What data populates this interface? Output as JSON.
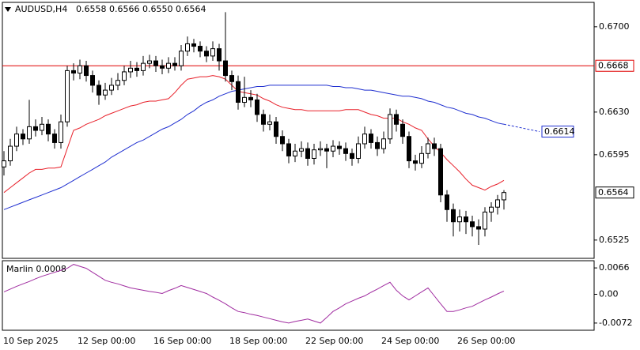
{
  "chart_data": [
    {
      "type": "candlestick",
      "symbol": "AUDUSD,H4",
      "ohlc_header": "0.6558 0.6566 0.6550 0.6564",
      "categories": [
        "10 Sep 2025",
        null,
        null,
        null,
        null,
        null,
        null,
        null,
        null,
        null,
        null,
        null,
        "12 Sep 00:00",
        null,
        null,
        null,
        null,
        null,
        null,
        null,
        null,
        null,
        null,
        null,
        "16 Sep 00:00",
        null,
        null,
        null,
        null,
        null,
        null,
        null,
        null,
        null,
        null,
        null,
        "18 Sep 00:00",
        null,
        null,
        null,
        null,
        null,
        null,
        null,
        null,
        null,
        null,
        null,
        "22 Sep 00:00",
        null,
        null,
        null,
        null,
        null,
        null,
        null,
        null,
        null,
        null,
        null,
        "24 Sep 00:00",
        null,
        null,
        null,
        null,
        null,
        null,
        null,
        null,
        null,
        null,
        null,
        "26 Sep 00:00",
        null,
        null,
        null,
        null,
        null,
        null,
        null
      ],
      "open": [
        0.6585,
        0.659,
        0.6602,
        0.6612,
        0.6608,
        0.6618,
        0.6615,
        0.662,
        0.6612,
        0.6605,
        0.6622,
        0.6664,
        0.6662,
        0.6668,
        0.666,
        0.6652,
        0.6644,
        0.6648,
        0.6652,
        0.6656,
        0.6663,
        0.6666,
        0.6664,
        0.667,
        0.6672,
        0.6668,
        0.6666,
        0.667,
        0.6668,
        0.668,
        0.6686,
        0.6684,
        0.668,
        0.6676,
        0.6682,
        0.6672,
        0.666,
        0.6655,
        0.6638,
        0.6642,
        0.664,
        0.6628,
        0.662,
        0.6622,
        0.661,
        0.6604,
        0.6594,
        0.6598,
        0.66,
        0.6592,
        0.6599,
        0.66,
        0.6598,
        0.6602,
        0.66,
        0.6596,
        0.6592,
        0.6604,
        0.6612,
        0.6605,
        0.66,
        0.6608,
        0.6628,
        0.662,
        0.661,
        0.659,
        0.6588,
        0.6596,
        0.6604,
        0.66,
        0.6562,
        0.655,
        0.654,
        0.6544,
        0.654,
        0.6536,
        0.6534,
        0.6548,
        0.6552,
        0.6558
      ],
      "high": [
        0.6598,
        0.6608,
        0.6618,
        0.6616,
        0.664,
        0.6624,
        0.6626,
        0.6624,
        0.6616,
        0.6628,
        0.6668,
        0.667,
        0.6673,
        0.6672,
        0.6664,
        0.6656,
        0.6654,
        0.6658,
        0.6662,
        0.6668,
        0.6672,
        0.6671,
        0.6676,
        0.6677,
        0.6676,
        0.6673,
        0.6675,
        0.6675,
        0.6685,
        0.6692,
        0.669,
        0.6688,
        0.6684,
        0.6688,
        0.6686,
        0.6712,
        0.6664,
        0.666,
        0.6659,
        0.6648,
        0.6645,
        0.6632,
        0.6628,
        0.6626,
        0.6615,
        0.6608,
        0.6604,
        0.6606,
        0.6605,
        0.6604,
        0.6606,
        0.6604,
        0.6607,
        0.6606,
        0.6605,
        0.66,
        0.661,
        0.6618,
        0.6616,
        0.661,
        0.6614,
        0.6633,
        0.6632,
        0.6624,
        0.6614,
        0.6595,
        0.6602,
        0.6609,
        0.6609,
        0.6604,
        0.6566,
        0.6555,
        0.655,
        0.6549,
        0.6545,
        0.6542,
        0.6552,
        0.6556,
        0.6562,
        0.6566
      ],
      "low": [
        0.6578,
        0.6586,
        0.6598,
        0.6603,
        0.6604,
        0.661,
        0.6611,
        0.6606,
        0.66,
        0.66,
        0.6618,
        0.6656,
        0.6657,
        0.6655,
        0.6646,
        0.6636,
        0.664,
        0.6644,
        0.6648,
        0.6652,
        0.6658,
        0.6659,
        0.666,
        0.6666,
        0.6663,
        0.6661,
        0.6662,
        0.6664,
        0.6664,
        0.6676,
        0.6679,
        0.6675,
        0.6671,
        0.6672,
        0.6664,
        0.6655,
        0.6648,
        0.6632,
        0.6634,
        0.6634,
        0.6622,
        0.6614,
        0.6615,
        0.6604,
        0.6598,
        0.6588,
        0.6589,
        0.6593,
        0.6586,
        0.6587,
        0.6594,
        0.6584,
        0.6593,
        0.6595,
        0.659,
        0.6586,
        0.6588,
        0.66,
        0.66,
        0.6594,
        0.6596,
        0.6604,
        0.6614,
        0.6604,
        0.6584,
        0.6582,
        0.6584,
        0.6592,
        0.6594,
        0.6556,
        0.654,
        0.6528,
        0.6532,
        0.653,
        0.6528,
        0.6521,
        0.6528,
        0.654,
        0.6546,
        0.655
      ],
      "close": [
        0.659,
        0.6602,
        0.6612,
        0.6608,
        0.6618,
        0.6615,
        0.662,
        0.6612,
        0.6605,
        0.6622,
        0.6664,
        0.6662,
        0.6668,
        0.666,
        0.6652,
        0.6644,
        0.6648,
        0.6652,
        0.6656,
        0.6663,
        0.6666,
        0.6664,
        0.667,
        0.6672,
        0.6668,
        0.6666,
        0.667,
        0.6668,
        0.668,
        0.6686,
        0.6684,
        0.668,
        0.6676,
        0.6682,
        0.6672,
        0.666,
        0.6655,
        0.6638,
        0.6642,
        0.664,
        0.6628,
        0.662,
        0.6622,
        0.661,
        0.6604,
        0.6594,
        0.6598,
        0.66,
        0.6592,
        0.6599,
        0.66,
        0.6598,
        0.6602,
        0.66,
        0.6596,
        0.6592,
        0.6604,
        0.6612,
        0.6605,
        0.66,
        0.6608,
        0.6628,
        0.662,
        0.661,
        0.659,
        0.6588,
        0.6596,
        0.6604,
        0.66,
        0.6562,
        0.655,
        0.654,
        0.6544,
        0.654,
        0.6536,
        0.6534,
        0.6548,
        0.6552,
        0.6558,
        0.6564
      ],
      "up_color": "#ffffff",
      "down_color": "#000000",
      "wick_color": "#000000",
      "lines": [
        {
          "color": "#e8202a",
          "values": [
            0.6564,
            0.6568,
            0.6572,
            0.6576,
            0.658,
            0.6583,
            0.6583,
            0.6584,
            0.6584,
            0.6585,
            0.66,
            0.6615,
            0.6617,
            0.662,
            0.6622,
            0.6624,
            0.6627,
            0.6629,
            0.6631,
            0.6633,
            0.6635,
            0.6636,
            0.6638,
            0.6639,
            0.6639,
            0.664,
            0.6641,
            0.6646,
            0.6652,
            0.6657,
            0.6658,
            0.6659,
            0.6659,
            0.666,
            0.6659,
            0.6657,
            0.6652,
            0.6647,
            0.6646,
            0.6645,
            0.6644,
            0.6641,
            0.6639,
            0.6636,
            0.6634,
            0.6633,
            0.6632,
            0.6632,
            0.6631,
            0.6631,
            0.6631,
            0.6631,
            0.6631,
            0.6631,
            0.6632,
            0.6632,
            0.6632,
            0.663,
            0.6628,
            0.6627,
            0.6625,
            0.6625,
            0.6625,
            0.6622,
            0.662,
            0.6617,
            0.6615,
            0.6608,
            0.6602,
            0.6597,
            0.6591,
            0.6586,
            0.6581,
            0.6575,
            0.657,
            0.6568,
            0.6566,
            0.6569,
            0.6571,
            0.6574
          ]
        },
        {
          "color": "#1f2fd0",
          "values": [
            0.655,
            0.6552,
            0.6554,
            0.6556,
            0.6558,
            0.656,
            0.6562,
            0.6564,
            0.6566,
            0.6568,
            0.6571,
            0.6574,
            0.6577,
            0.658,
            0.6583,
            0.6586,
            0.6589,
            0.6593,
            0.6596,
            0.6599,
            0.6602,
            0.6605,
            0.6607,
            0.661,
            0.6613,
            0.6616,
            0.6618,
            0.6621,
            0.6624,
            0.6628,
            0.6631,
            0.6635,
            0.6638,
            0.664,
            0.6643,
            0.6645,
            0.6647,
            0.6648,
            0.6649,
            0.665,
            0.6651,
            0.6651,
            0.6652,
            0.6652,
            0.6652,
            0.6652,
            0.6652,
            0.6652,
            0.6652,
            0.6652,
            0.6652,
            0.6652,
            0.6651,
            0.6651,
            0.665,
            0.665,
            0.6649,
            0.6648,
            0.6648,
            0.6647,
            0.6646,
            0.6645,
            0.6644,
            0.6643,
            0.6643,
            0.6642,
            0.6641,
            0.6639,
            0.6638,
            0.6636,
            0.6634,
            0.6633,
            0.6631,
            0.6629,
            0.6628,
            0.6626,
            0.6625,
            0.6623,
            0.6621,
            0.662
          ],
          "forecast": 0.6614
        }
      ],
      "hline": {
        "value": 0.6668,
        "color": "#e00000"
      },
      "last_price": 0.6564,
      "ylim": [
        0.651,
        0.672
      ],
      "yticks": [
        {
          "value": 0.67,
          "label": "0.6700"
        },
        {
          "value": 0.663,
          "label": "0.6630"
        },
        0.6595,
        0.6525
      ]
    },
    {
      "type": "line",
      "title": "Marlin 0.0008",
      "color": "#a02ca0",
      "values": [
        0.0006,
        0.0013,
        0.002,
        0.0026,
        0.0032,
        0.0039,
        0.0045,
        0.005,
        0.0055,
        0.006,
        0.0065,
        0.0075,
        0.007,
        0.0065,
        0.0055,
        0.0045,
        0.0035,
        0.003,
        0.0026,
        0.0021,
        0.0016,
        0.0013,
        0.001,
        0.0007,
        0.0005,
        0.0002,
        0.0009,
        0.0015,
        0.0022,
        0.0017,
        0.0012,
        0.0007,
        0.0002,
        -0.0007,
        -0.0015,
        -0.0024,
        -0.0034,
        -0.0043,
        -0.0046,
        -0.005,
        -0.0053,
        -0.0057,
        -0.0061,
        -0.0065,
        -0.0069,
        -0.0072,
        -0.0068,
        -0.0065,
        -0.0062,
        -0.0067,
        -0.0072,
        -0.0058,
        -0.0043,
        -0.0034,
        -0.0024,
        -0.0017,
        -0.001,
        -0.0004,
        0.0005,
        0.0013,
        0.0022,
        0.003,
        0.001,
        -0.0004,
        -0.0014,
        -0.0004,
        0.0006,
        0.0016,
        -0.0004,
        -0.0024,
        -0.0043,
        -0.0043,
        -0.0039,
        -0.0034,
        -0.003,
        -0.0022,
        -0.0014,
        -0.0007,
        0.0001,
        0.0008
      ],
      "ylim": [
        -0.009,
        0.0084
      ],
      "yticks": [
        0.0066,
        {
          "value": 0,
          "label": "0.00"
        },
        -0.0072
      ]
    }
  ]
}
